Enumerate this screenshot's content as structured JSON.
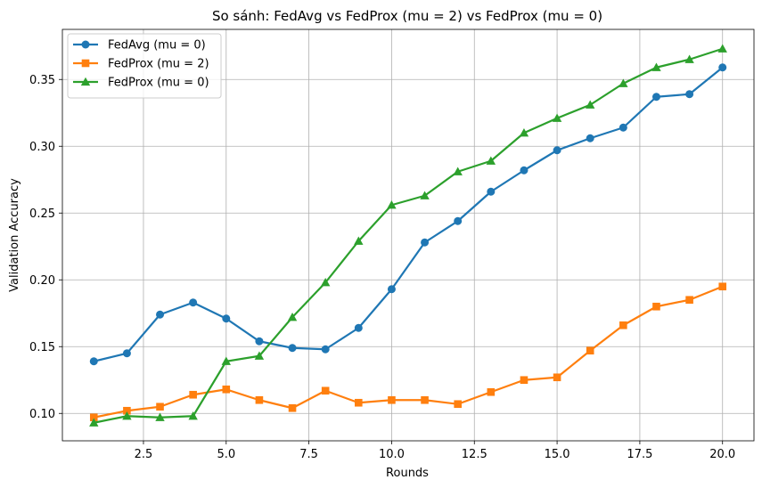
{
  "chart_data": {
    "type": "line",
    "title": "So sánh: FedAvg vs FedProx (mu = 2) vs FedProx (mu = 0)",
    "xlabel": "Rounds",
    "ylabel": "Validation Accuracy",
    "xlim": [
      0.05,
      20.95
    ],
    "ylim": [
      0.0795,
      0.3875
    ],
    "xticks": [
      2.5,
      5.0,
      7.5,
      10.0,
      12.5,
      15.0,
      17.5,
      20.0
    ],
    "yticks": [
      0.1,
      0.15,
      0.2,
      0.25,
      0.3,
      0.35
    ],
    "xtick_labels": [
      "2.5",
      "5.0",
      "7.5",
      "10.0",
      "12.5",
      "15.0",
      "17.5",
      "20.0"
    ],
    "ytick_labels": [
      "0.10",
      "0.15",
      "0.20",
      "0.25",
      "0.30",
      "0.35"
    ],
    "grid": true,
    "legend_position": "top-left",
    "x": [
      1,
      2,
      3,
      4,
      5,
      6,
      7,
      8,
      9,
      10,
      11,
      12,
      13,
      14,
      15,
      16,
      17,
      18,
      19,
      20
    ],
    "series": [
      {
        "name": "FedAvg (mu = 0)",
        "color": "#1f77b4",
        "marker": "circle",
        "values": [
          0.139,
          0.145,
          0.174,
          0.183,
          0.171,
          0.154,
          0.149,
          0.148,
          0.164,
          0.193,
          0.228,
          0.244,
          0.266,
          0.282,
          0.297,
          0.306,
          0.314,
          0.337,
          0.339,
          0.359
        ]
      },
      {
        "name": "FedProx (mu = 2)",
        "color": "#ff7f0e",
        "marker": "square",
        "values": [
          0.097,
          0.102,
          0.105,
          0.114,
          0.118,
          0.11,
          0.104,
          0.117,
          0.108,
          0.11,
          0.11,
          0.107,
          0.116,
          0.125,
          0.127,
          0.147,
          0.166,
          0.18,
          0.185,
          0.195
        ]
      },
      {
        "name": "FedProx (mu = 0)",
        "color": "#2ca02c",
        "marker": "triangle",
        "values": [
          0.093,
          0.098,
          0.097,
          0.098,
          0.139,
          0.143,
          0.172,
          0.198,
          0.229,
          0.256,
          0.263,
          0.281,
          0.289,
          0.31,
          0.321,
          0.331,
          0.347,
          0.359,
          0.365,
          0.373
        ]
      }
    ]
  }
}
